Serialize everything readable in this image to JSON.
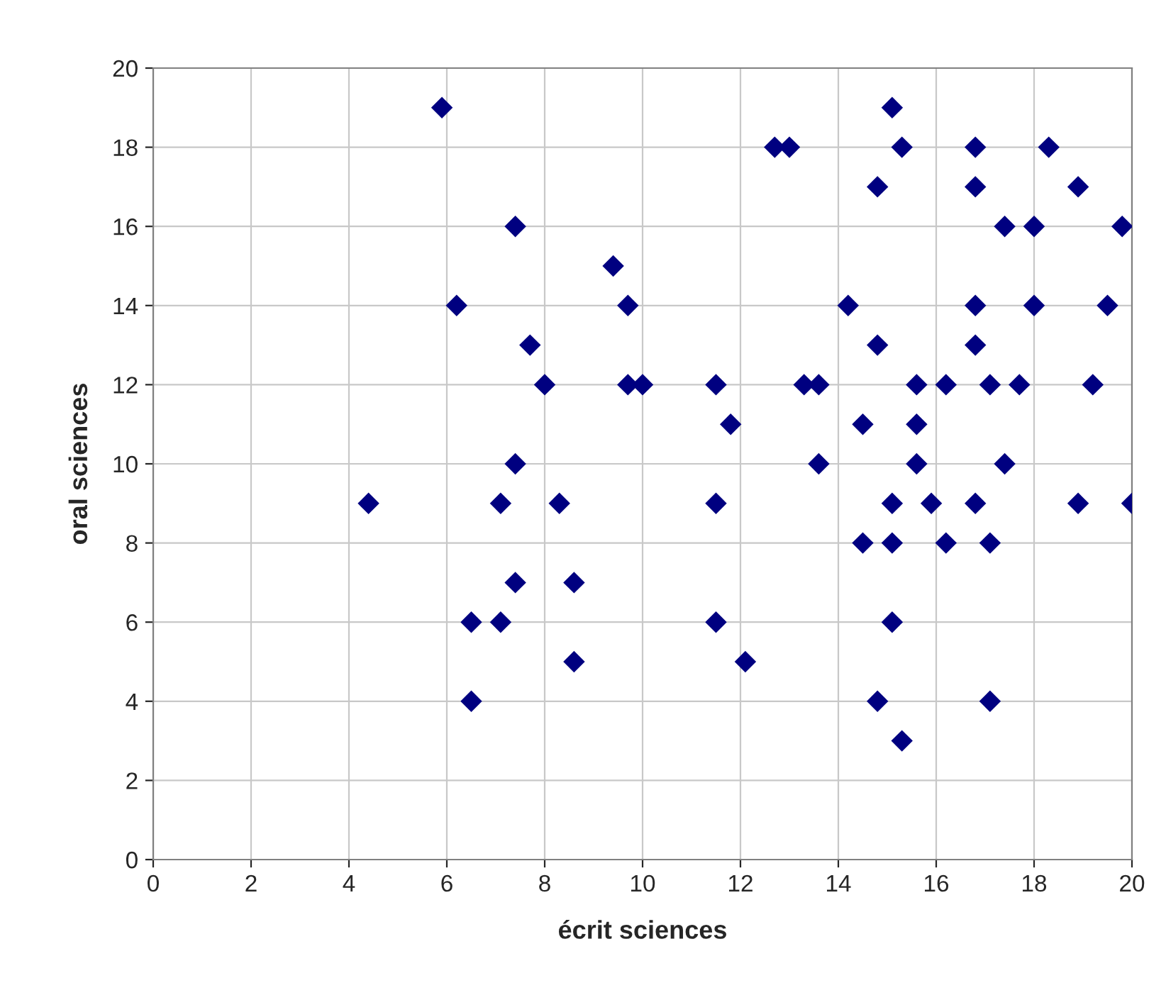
{
  "chart_data": {
    "type": "scatter",
    "xlabel": "écrit sciences",
    "ylabel": "oral sciences",
    "x": [
      4.4,
      5.9,
      6.2,
      6.5,
      6.5,
      7.1,
      7.1,
      7.4,
      7.4,
      7.4,
      7.7,
      8.0,
      8.3,
      8.6,
      8.6,
      9.4,
      9.7,
      9.7,
      10.0,
      11.5,
      11.5,
      11.5,
      11.8,
      12.1,
      12.7,
      13.0,
      13.3,
      13.6,
      13.6,
      14.2,
      14.5,
      14.5,
      14.8,
      14.8,
      14.8,
      15.1,
      15.1,
      15.1,
      15.1,
      15.3,
      15.3,
      15.6,
      15.6,
      15.6,
      15.9,
      16.2,
      16.2,
      16.8,
      16.8,
      16.8,
      16.8,
      16.8,
      17.1,
      17.1,
      17.1,
      17.4,
      17.4,
      17.7,
      18.0,
      18.0,
      18.3,
      18.9,
      18.9,
      19.2,
      19.5,
      19.8,
      20.0
    ],
    "series": [
      {
        "color": "#000080",
        "values": [
          9,
          19,
          14,
          6,
          4,
          6,
          9,
          16,
          10,
          7,
          13,
          12,
          9,
          7,
          5,
          15,
          14,
          12,
          12,
          12,
          9,
          6,
          11,
          5,
          18,
          18,
          12,
          12,
          10,
          14,
          11,
          8,
          17,
          13,
          4,
          19,
          9,
          8,
          6,
          18,
          3,
          12,
          11,
          10,
          9,
          12,
          8,
          18,
          17,
          14,
          13,
          9,
          12,
          8,
          4,
          16,
          10,
          12,
          16,
          14,
          18,
          17,
          9,
          12,
          14,
          16,
          9
        ]
      }
    ],
    "marker": "diamond",
    "grid": true,
    "legend": false,
    "xlim": [
      0,
      20
    ],
    "ylim": [
      0,
      20
    ],
    "xticks": [
      0,
      2,
      4,
      6,
      8,
      10,
      12,
      14,
      16,
      18,
      20
    ],
    "yticks": [
      0,
      2,
      4,
      6,
      8,
      10,
      12,
      14,
      16,
      18,
      20
    ]
  }
}
